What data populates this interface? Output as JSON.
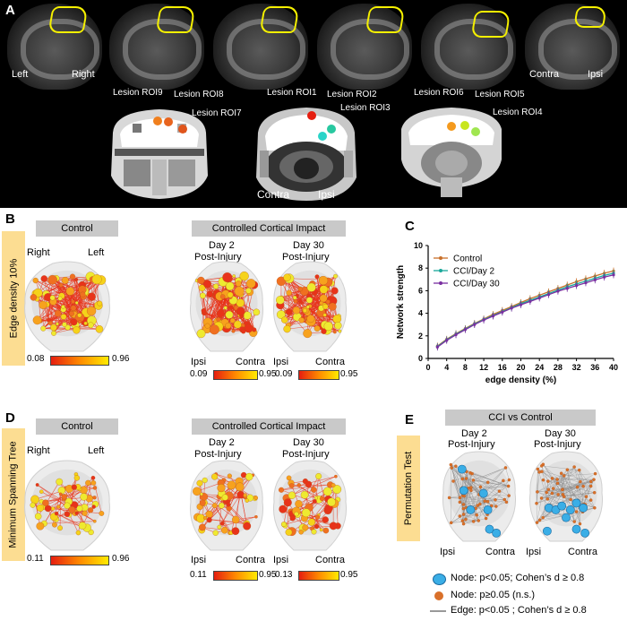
{
  "panelA": {
    "letter": "A",
    "left": "Left",
    "right": "Right",
    "contra": "Contra",
    "ipsi": "Ipsi",
    "lesions": [
      "Lesion ROI9",
      "Lesion ROI8",
      "Lesion ROI7",
      "Lesion ROI1",
      "Lesion ROI2",
      "Lesion ROI3",
      "Lesion ROI6",
      "Lesion ROI5",
      "Lesion ROI4"
    ],
    "atlas_contra": "Contra",
    "atlas_ipsi": "Ipsi",
    "colors": {
      "roi9": "#f07f1e",
      "roi8": "#e8641e",
      "roi7": "#e0551c",
      "roi1": "#e51e10",
      "roi2": "#28c8a0",
      "roi3": "#2ad4c8",
      "roi6": "#f49a1e",
      "roi5": "#c8e61e",
      "roi4": "#a0e650"
    }
  },
  "panelB": {
    "letter": "B",
    "side": "Edge density 10%",
    "control": "Control",
    "cci": "Controlled Cortical Impact",
    "right": "Right",
    "left": "Left",
    "day2": "Day 2",
    "day30": "Day 30",
    "post": "Post-Injury",
    "ipsi": "Ipsi",
    "contra": "Contra",
    "cb1": [
      "0.08",
      "0.96"
    ],
    "cb2": [
      "0.09",
      "0.95"
    ],
    "cb3": [
      "0.09",
      "0.95"
    ]
  },
  "panelC": {
    "letter": "C",
    "chart_data": {
      "type": "line",
      "xlabel": "edge density (%)",
      "ylabel": "Network strength",
      "xlim": [
        0,
        40
      ],
      "ylim": [
        0,
        10
      ],
      "xticks": [
        "0",
        "4",
        "8",
        "12",
        "16",
        "20",
        "24",
        "28",
        "32",
        "36",
        "40"
      ],
      "yticks": [
        "0",
        "2",
        "4",
        "6",
        "8",
        "10"
      ],
      "x": [
        2,
        4,
        6,
        8,
        10,
        12,
        14,
        16,
        18,
        20,
        22,
        24,
        26,
        28,
        30,
        32,
        34,
        36,
        38,
        40
      ],
      "series": [
        {
          "name": "Control",
          "color": "#c8702a",
          "values": [
            1.1,
            1.7,
            2.2,
            2.65,
            3.1,
            3.5,
            3.9,
            4.25,
            4.6,
            4.95,
            5.3,
            5.6,
            5.9,
            6.2,
            6.5,
            6.8,
            7.05,
            7.3,
            7.55,
            7.75
          ]
        },
        {
          "name": "CCI/Day 2",
          "color": "#1aa89a",
          "values": [
            1.05,
            1.65,
            2.15,
            2.6,
            3.05,
            3.45,
            3.8,
            4.15,
            4.5,
            4.85,
            5.15,
            5.45,
            5.75,
            6.05,
            6.35,
            6.6,
            6.85,
            7.1,
            7.35,
            7.55
          ]
        },
        {
          "name": "CCI/Day 30",
          "color": "#7a2fa0",
          "values": [
            1.0,
            1.6,
            2.1,
            2.55,
            3.0,
            3.4,
            3.75,
            4.1,
            4.45,
            4.75,
            5.05,
            5.35,
            5.65,
            5.95,
            6.2,
            6.45,
            6.7,
            6.95,
            7.2,
            7.4
          ]
        }
      ],
      "legend": [
        "Control",
        "CCI/Day 2",
        "CCI/Day 30"
      ]
    }
  },
  "panelD": {
    "letter": "D",
    "side": "Minimum Spanning Tree",
    "control": "Control",
    "cci": "Controlled Cortical Impact",
    "right": "Right",
    "left": "Left",
    "day2": "Day 2",
    "day30": "Day 30",
    "post": "Post-Injury",
    "ipsi": "Ipsi",
    "contra": "Contra",
    "cb1": [
      "0.11",
      "0.96"
    ],
    "cb2": [
      "0.11",
      "0.95"
    ],
    "cb3": [
      "0.13",
      "0.95"
    ]
  },
  "panelE": {
    "letter": "E",
    "side": "Permutation Test",
    "header": "CCI vs Control",
    "day2": "Day 2",
    "day30": "Day 30",
    "post": "Post-Injury",
    "ipsi": "Ipsi",
    "contra": "Contra",
    "legend": [
      "Node: p<0.05; Cohen’s d ≥ 0.8",
      "Node: p≥0.05 (n.s.)",
      "Edge: p<0.05 ; Cohen’s d ≥ 0.8"
    ]
  }
}
